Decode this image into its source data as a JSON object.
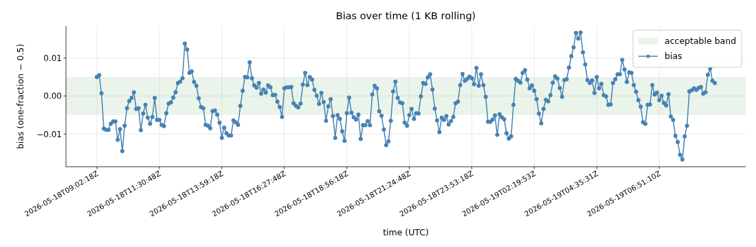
{
  "chart_data": {
    "type": "line",
    "title": "Bias over time (1 KB rolling)",
    "xlabel": "time (UTC)",
    "ylabel": "bias (one-fraction − 0.5)",
    "categories": [
      "2026-05-18T09:02:18Z",
      null,
      null,
      null,
      null,
      null,
      null,
      null,
      null,
      null,
      null,
      null,
      null,
      null,
      null,
      null,
      null,
      null,
      null,
      null,
      null,
      null,
      null,
      null,
      null,
      null,
      null,
      "2026-05-18T11:30:48Z",
      null,
      null,
      null,
      null,
      null,
      null,
      null,
      null,
      null,
      null,
      null,
      null,
      null,
      null,
      null,
      null,
      null,
      null,
      null,
      null,
      null,
      null,
      null,
      null,
      null,
      null,
      "2026-05-18T13:59:18Z",
      null,
      null,
      null,
      null,
      null,
      null,
      null,
      null,
      null,
      null,
      null,
      null,
      null,
      null,
      null,
      null,
      null,
      null,
      null,
      null,
      null,
      null,
      null,
      null,
      null,
      null,
      "2026-05-18T16:27:48Z",
      null,
      null,
      null,
      null,
      null,
      null,
      null,
      null,
      null,
      null,
      null,
      null,
      null,
      null,
      null,
      null,
      null,
      null,
      null,
      null,
      null,
      null,
      null,
      null,
      null,
      null,
      "2026-05-18T18:56:18Z",
      null,
      null,
      null,
      null,
      null,
      null,
      null,
      null,
      null,
      null,
      null,
      null,
      null,
      null,
      null,
      null,
      null,
      null,
      null,
      null,
      null,
      null,
      null,
      null,
      null,
      null,
      "2026-05-18T21:24:48Z",
      null,
      null,
      null,
      null,
      null,
      null,
      null,
      null,
      null,
      null,
      null,
      null,
      null,
      null,
      null,
      null,
      null,
      null,
      null,
      null,
      null,
      null,
      null,
      null,
      null,
      null,
      "2026-05-18T23:53:18Z",
      null,
      null,
      null,
      null,
      null,
      null,
      null,
      null,
      null,
      null,
      null,
      null,
      null,
      null,
      null,
      null,
      null,
      null,
      null,
      null,
      null,
      null,
      null,
      null,
      null,
      null,
      "2026-05-19T02:19:53Z",
      null,
      null,
      null,
      null,
      null,
      null,
      null,
      null,
      null,
      null,
      null,
      null,
      null,
      null,
      null,
      null,
      null,
      null,
      null,
      null,
      null,
      null,
      null,
      null,
      null,
      null,
      "2026-05-19T04:35:31Z",
      null,
      null,
      null,
      null,
      null,
      null,
      null,
      null,
      null,
      null,
      null,
      null,
      null,
      null,
      null,
      null,
      null,
      null,
      null,
      null,
      null,
      null,
      null,
      null,
      null,
      null,
      "2026-05-19T06:51:10Z",
      null,
      null,
      null,
      null,
      null,
      null,
      null,
      null,
      null,
      null,
      null,
      null,
      null,
      null,
      null,
      null,
      null,
      null,
      null,
      null,
      null,
      null,
      null,
      null
    ],
    "series": [
      {
        "name": "bias",
        "color": "#4682b4",
        "values": [
          0.005,
          0.0055,
          0.0007,
          -0.0086,
          -0.0089,
          -0.0089,
          -0.0073,
          -0.0067,
          -0.0067,
          -0.0115,
          -0.0087,
          -0.0145,
          -0.0078,
          -0.0032,
          -0.0013,
          -0.0005,
          0.001,
          -0.0034,
          -0.0032,
          -0.009,
          -0.0046,
          -0.0023,
          -0.0057,
          -0.0073,
          -0.0055,
          -0.0005,
          -0.0063,
          -0.0063,
          -0.0076,
          -0.0079,
          -0.0045,
          -0.002,
          -0.0017,
          -0.0004,
          0.001,
          0.0034,
          0.0038,
          0.0047,
          0.0138,
          0.0122,
          0.0061,
          0.0065,
          0.0037,
          0.0027,
          -0.0006,
          -0.0029,
          -0.0032,
          -0.0076,
          -0.0078,
          -0.0085,
          -0.004,
          -0.0038,
          -0.0049,
          -0.007,
          -0.011,
          -0.0083,
          -0.0098,
          -0.0104,
          -0.0104,
          -0.0064,
          -0.0069,
          -0.0076,
          -0.0026,
          0.0014,
          0.005,
          0.0049,
          0.0089,
          0.0047,
          0.0028,
          0.0022,
          0.0034,
          0.0006,
          0.0017,
          0.0009,
          0.0028,
          0.0023,
          0.0002,
          0.0003,
          -0.0015,
          -0.0029,
          -0.0055,
          0.002,
          0.0023,
          0.0023,
          0.0024,
          -0.0019,
          -0.0026,
          -0.003,
          -0.002,
          0.003,
          0.0061,
          0.0029,
          0.005,
          0.0043,
          0.0016,
          0.0001,
          -0.0021,
          0.0008,
          -0.0016,
          -0.0065,
          -0.0027,
          -0.0008,
          -0.0053,
          -0.011,
          -0.005,
          -0.006,
          -0.0093,
          -0.0118,
          -0.0045,
          -0.0004,
          -0.0044,
          -0.0056,
          -0.0062,
          -0.0049,
          -0.0113,
          -0.0077,
          -0.0077,
          -0.0066,
          -0.0077,
          0.0004,
          0.0027,
          0.002,
          -0.004,
          -0.0052,
          -0.0088,
          -0.0129,
          -0.0119,
          -0.0065,
          0.0012,
          0.0038,
          -0.0005,
          -0.0017,
          -0.0019,
          -0.007,
          -0.0078,
          -0.005,
          -0.0034,
          -0.006,
          -0.0045,
          -0.0046,
          -0.0001,
          0.0034,
          0.0032,
          0.0049,
          0.0057,
          0.0017,
          -0.0033,
          -0.0064,
          -0.0095,
          -0.0057,
          -0.0063,
          -0.0053,
          -0.0075,
          -0.0066,
          -0.0055,
          -0.0019,
          -0.0015,
          0.0029,
          0.0058,
          0.004,
          0.0045,
          0.0051,
          0.0047,
          0.0031,
          0.0074,
          0.0027,
          0.0057,
          0.0029,
          -0.0002,
          -0.0068,
          -0.0068,
          -0.0062,
          -0.0051,
          -0.0102,
          -0.0048,
          -0.0056,
          -0.0061,
          -0.0098,
          -0.0112,
          -0.0106,
          -0.0023,
          0.0045,
          0.004,
          0.0035,
          0.0061,
          0.0068,
          0.0043,
          0.002,
          0.0028,
          0.0014,
          -0.0008,
          -0.0046,
          -0.0072,
          -0.0034,
          -0.001,
          -0.0014,
          0.0002,
          0.0035,
          0.0052,
          0.0046,
          0.0021,
          -0.0002,
          0.0042,
          0.0044,
          0.0075,
          0.0105,
          0.0128,
          0.0166,
          0.0151,
          0.0167,
          0.0115,
          0.0083,
          0.0042,
          0.0034,
          0.0041,
          0.0008,
          0.005,
          0.002,
          0.0032,
          0.0002,
          -0.0001,
          -0.0023,
          -0.0022,
          0.0034,
          0.0044,
          0.0057,
          0.0057,
          0.0095,
          0.007,
          0.0037,
          0.0062,
          0.0061,
          0.0029,
          0.0011,
          -0.0011,
          -0.0028,
          -0.0069,
          -0.0073,
          -0.0023,
          -0.0022,
          0.0029,
          0.0004,
          0.0009,
          -0.0011,
          0.0001,
          -0.0018,
          -0.0025,
          0.0005,
          -0.0054,
          -0.0063,
          -0.0105,
          -0.0121,
          -0.0155,
          -0.0167,
          -0.0106,
          -0.0078,
          0.0012,
          0.0015,
          0.002,
          0.0016,
          0.0021,
          0.0024,
          0.0006,
          0.001,
          0.0056,
          0.0072,
          0.004,
          0.0034
        ]
      }
    ],
    "ylim": [
      -0.0186,
      0.0184
    ],
    "yticks": [
      {
        "value": -0.01,
        "label": "−0.01"
      },
      {
        "value": 0,
        "label": "0.00"
      },
      {
        "value": 0.01,
        "label": "0.01"
      }
    ],
    "bands": [
      {
        "axis": "y",
        "from": -0.005,
        "to": 0.005,
        "label": "acceptable band",
        "color": "#eaf4ea"
      }
    ],
    "grid": true,
    "legend": "top right",
    "marker": "circle",
    "line_style": "solid"
  }
}
